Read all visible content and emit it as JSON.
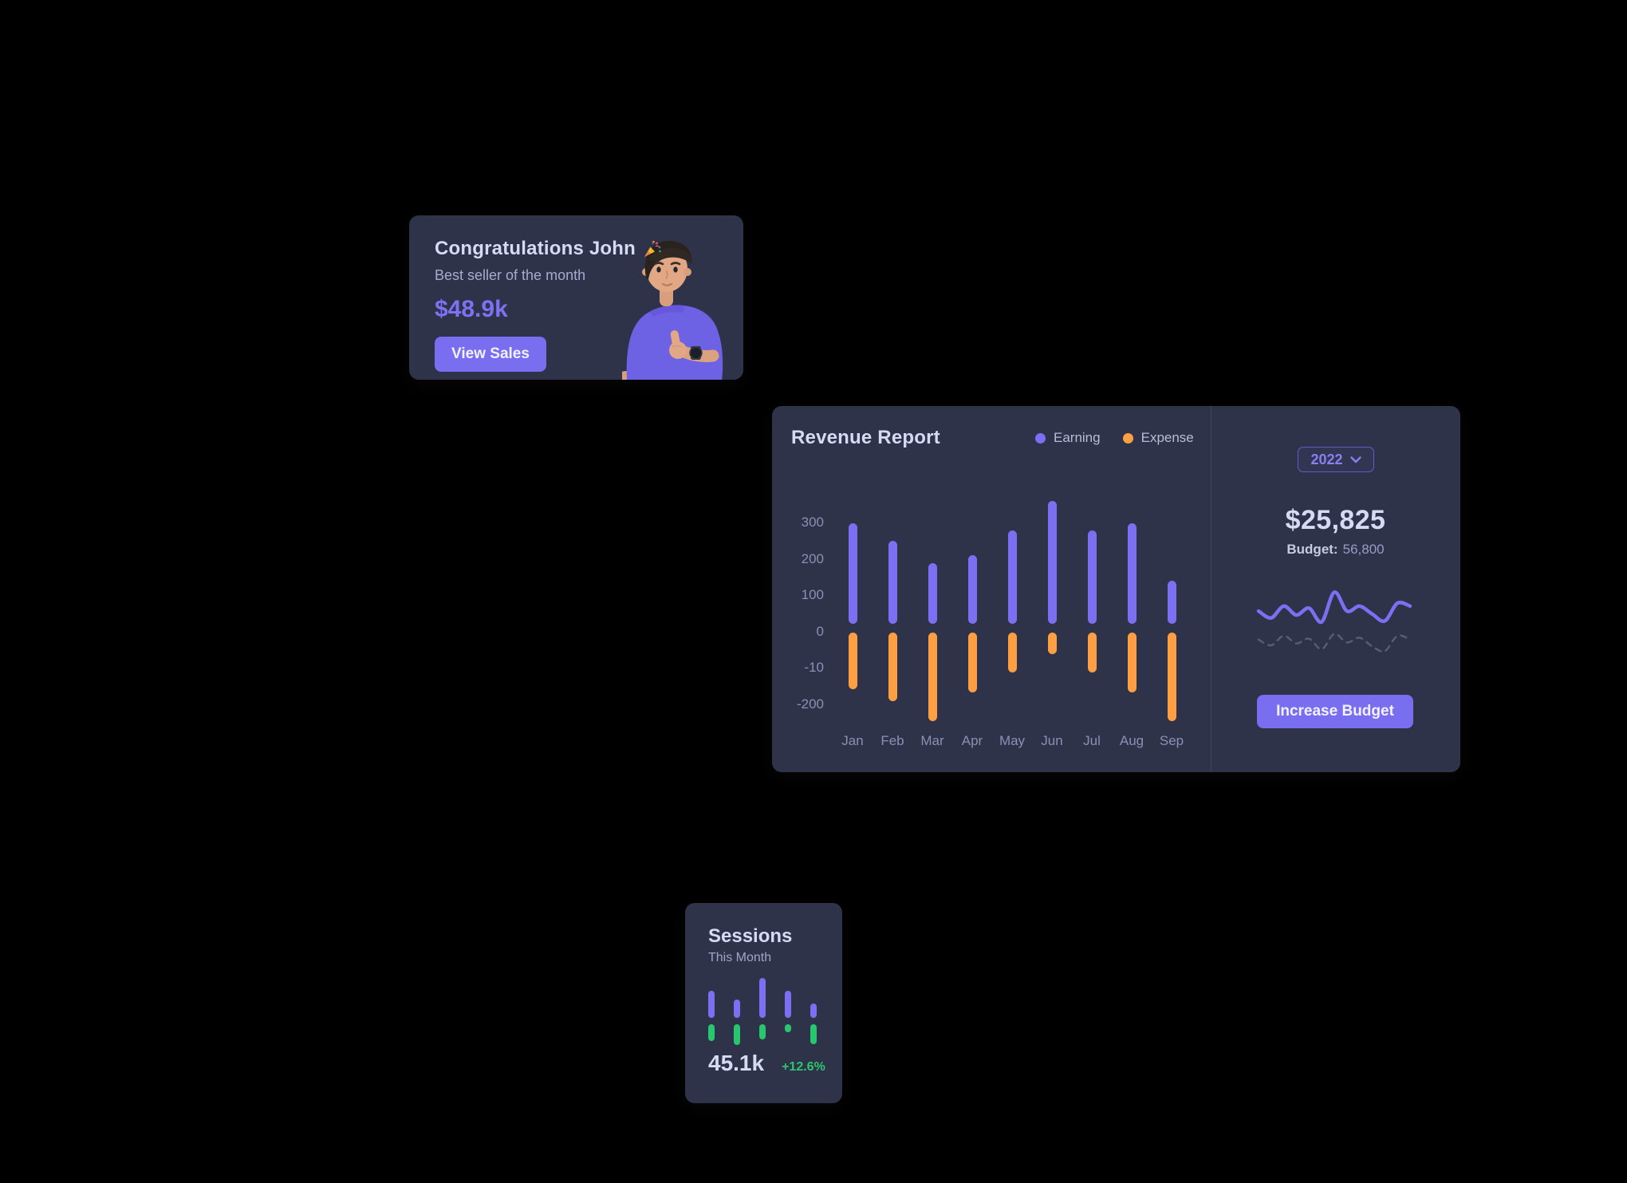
{
  "colors": {
    "card_bg": "#2f3349",
    "primary": "#7367f0",
    "earning_bar": "#7b6ff2",
    "expense_bar": "#ff9f43",
    "success": "#28c76f",
    "heading": "#d6daf2",
    "muted": "#a6accf",
    "axis": "#8a90b2",
    "dashed_line": "#565b77"
  },
  "congrats_card": {
    "title": "Congratulations John",
    "title_icon": "party-popper",
    "subtitle": "Best seller of the month",
    "amount": "$48.9k",
    "button_label": "View Sales"
  },
  "revenue_card": {
    "title": "Revenue Report",
    "year": "2022",
    "total": "$25,825",
    "budget_label": "Budget:",
    "budget_value": "56,800",
    "button_label": "Increase Budget"
  },
  "sessions_card": {
    "title": "Sessions",
    "subtitle": "This Month",
    "value": "45.1k",
    "delta": "+12.6%"
  },
  "chart_data": [
    {
      "id": "revenue-report",
      "type": "bar",
      "title": "Revenue Report",
      "categories": [
        "Jan",
        "Feb",
        "Mar",
        "Apr",
        "May",
        "Jun",
        "Jul",
        "Aug",
        "Sep"
      ],
      "series": [
        {
          "name": "Earning",
          "color": "#7b6ff2",
          "values": [
            300,
            250,
            190,
            210,
            280,
            360,
            280,
            300,
            140
          ]
        },
        {
          "name": "Expense",
          "color": "#ff9f43",
          "values": [
            -155,
            -190,
            -245,
            -165,
            -110,
            -60,
            -110,
            -165,
            -245
          ]
        }
      ],
      "y_ticks": [
        "300",
        "200",
        "100",
        "0",
        "-10",
        "-200"
      ],
      "ylim": [
        -260,
        380
      ],
      "grid": false,
      "legend_position": "top"
    },
    {
      "id": "budget-sparkline",
      "type": "line",
      "series": [
        {
          "name": "budget-line-solid",
          "style": "solid",
          "color": "#7b6ff2",
          "values": [
            50,
            36,
            60,
            42,
            56,
            28,
            88,
            50,
            60,
            44,
            30,
            66,
            60
          ]
        },
        {
          "name": "budget-line-dashed",
          "style": "dashed",
          "color": "#565b77",
          "values": [
            26,
            20,
            30,
            22,
            27,
            16,
            32,
            23,
            28,
            19,
            14,
            30,
            26
          ]
        }
      ],
      "axes": "hidden"
    },
    {
      "id": "sessions-mini",
      "type": "bar",
      "series": [
        {
          "name": "sessions-up",
          "color": "#7b6ff2",
          "values": [
            70,
            48,
            105,
            70,
            38
          ]
        },
        {
          "name": "sessions-down",
          "color": "#28c76f",
          "values": [
            -42,
            -52,
            -38,
            -20,
            -50
          ]
        }
      ],
      "axes": "hidden"
    }
  ]
}
